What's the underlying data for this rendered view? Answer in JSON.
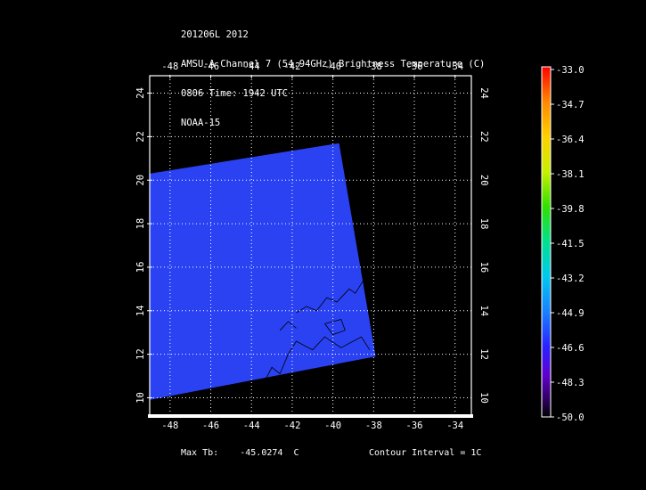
{
  "header": {
    "line1": "201206L 2012",
    "line2": "AMSU-A Channel 7 (54.94GHz) Brightness Temperature (C)",
    "line3": "0806 Time: 1942 UTC",
    "line4": "NOAA-15"
  },
  "map": {
    "lon_labels": [
      "-48",
      "-46",
      "-44",
      "-42",
      "-40",
      "-38",
      "-36",
      "-34"
    ],
    "lat_labels": [
      "10",
      "12",
      "14",
      "16",
      "18",
      "20",
      "22",
      "24"
    ],
    "lon_values": [
      -48,
      -46,
      -44,
      -42,
      -40,
      -38,
      -36,
      -34
    ],
    "lat_values": [
      10,
      12,
      14,
      16,
      18,
      20,
      22,
      24
    ],
    "lon_range": [
      -49.0,
      -33.2
    ],
    "lat_range": [
      9.2,
      24.8
    ],
    "swath_corners": [
      [
        -49.0,
        20.3
      ],
      [
        -39.7,
        21.7
      ],
      [
        -37.9,
        11.9
      ],
      [
        -49.0,
        9.9
      ]
    ],
    "swath_color": "#2a42f2",
    "grid": true
  },
  "colorbar": {
    "labels": [
      "-33.0",
      "-34.7",
      "-36.4",
      "-38.1",
      "-39.8",
      "-41.5",
      "-43.2",
      "-44.9",
      "-46.6",
      "-48.3",
      "-50.0"
    ],
    "values": [
      -33.0,
      -34.7,
      -36.4,
      -38.1,
      -39.8,
      -41.5,
      -43.2,
      -44.9,
      -46.6,
      -48.3,
      -50.0
    ],
    "colors": [
      "#ff0000",
      "#ff8800",
      "#ffcc00",
      "#d8ee00",
      "#44e000",
      "#00e07a",
      "#00c8e8",
      "#1a8cff",
      "#2a2aff",
      "#5a00d8",
      "#3a0070",
      "#000000"
    ]
  },
  "footer": {
    "max_label": "Max Tb:",
    "max_value": "-45.0274",
    "max_unit": "C",
    "contour": "Contour Interval = 1C"
  }
}
